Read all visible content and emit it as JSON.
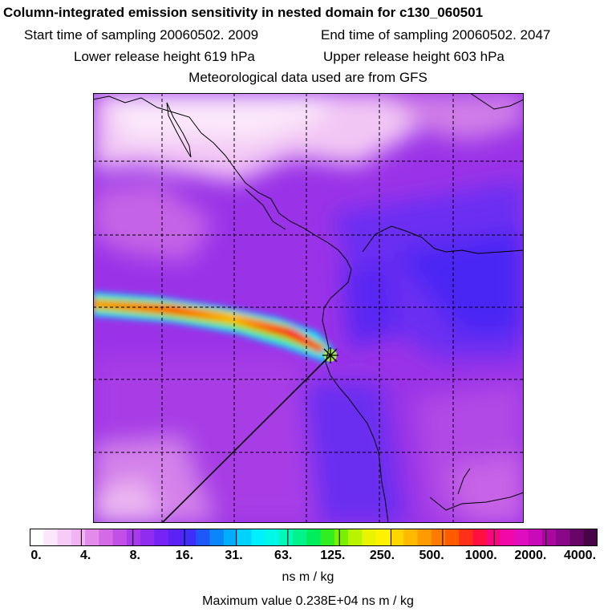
{
  "header": {
    "title": "Column-integrated emission sensitivity in nested domain for c130_060501",
    "start_time": "Start time of sampling 20060502.  2009",
    "end_time": "End time of sampling 20060502.  2047",
    "lower_release": "Lower release height  619 hPa",
    "upper_release": "Upper release height  603 hPa",
    "met_data": "Meteorological data used are from GFS"
  },
  "colorbar": {
    "labels": [
      "0.",
      "4.",
      "8.",
      "16.",
      "31.",
      "63.",
      "125.",
      "250.",
      "500.",
      "1000.",
      "2000.",
      "4000."
    ],
    "colors": [
      "#ffffff",
      "#fbe6fb",
      "#f6ccf6",
      "#f1b3f1",
      "#e28be8",
      "#d46ae6",
      "#c24fe6",
      "#a93aec",
      "#8f2cf0",
      "#7424f4",
      "#5b22f6",
      "#3f2df8",
      "#1f58f8",
      "#0a86fa",
      "#00aefb",
      "#00d2fd",
      "#00f0ff",
      "#00f8e6",
      "#00f8b8",
      "#00f48a",
      "#00ee5c",
      "#30ee20",
      "#78f000",
      "#b8f400",
      "#e8f400",
      "#fff200",
      "#ffd600",
      "#ffba00",
      "#ff9a00",
      "#ff7a00",
      "#ff5a00",
      "#ff3018",
      "#ff1040",
      "#f80880",
      "#f008a8",
      "#e00cc0",
      "#c80ab8",
      "#a808a0",
      "#880888",
      "#680668",
      "#480448"
    ],
    "units": "ns m / kg"
  },
  "footer": {
    "max_value": "Maximum value  0.238E+04 ns m / kg"
  },
  "map": {
    "feature_names": [
      "sensitivity-field",
      "plume",
      "release-point",
      "coastline",
      "lat-lon-grid",
      "trajectory-line"
    ]
  }
}
